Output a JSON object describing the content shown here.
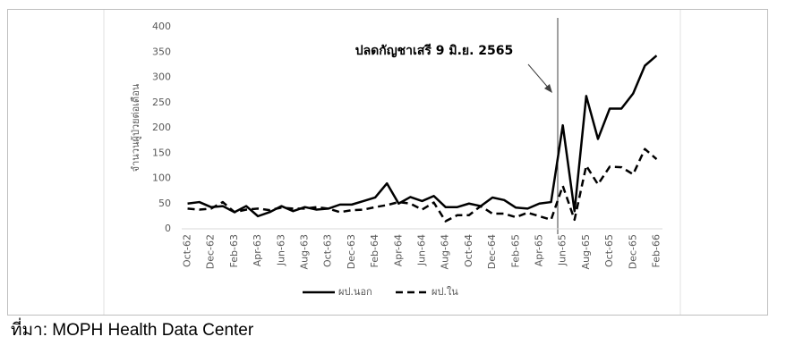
{
  "chart_data": {
    "type": "line",
    "annotation": "ปลดกัญชาเสรี 9 มิ.ย. 2565",
    "y_label": "จำนวนผู้ป่วยต่อเดือน",
    "source": "ที่มา: MOPH Health Data Center",
    "categories": [
      "Oct-62",
      null,
      "Dec-62",
      null,
      "Feb-63",
      null,
      "Apr-63",
      null,
      "Jun-63",
      null,
      "Aug-63",
      null,
      "Oct-63",
      null,
      "Dec-63",
      null,
      "Feb-64",
      null,
      "Apr-64",
      null,
      "Jun-64",
      null,
      "Aug-64",
      null,
      "Oct-64",
      null,
      "Dec-64",
      null,
      "Feb-65",
      null,
      "Apr-65",
      null,
      "Jun-65",
      null,
      "Aug-65",
      null,
      "Oct-65",
      null,
      "Dec-65",
      null,
      "Feb-66"
    ],
    "series": [
      {
        "name": "ผป.นอก",
        "color": "#000000",
        "dash": false,
        "values": [
          50,
          53,
          43,
          45,
          33,
          45,
          25,
          33,
          45,
          35,
          43,
          38,
          40,
          48,
          48,
          55,
          62,
          90,
          50,
          63,
          55,
          65,
          43,
          43,
          50,
          45,
          62,
          57,
          42,
          40,
          50,
          53,
          205,
          35,
          263,
          178,
          238,
          238,
          268,
          323,
          343
        ]
      },
      {
        "name": "ผป.ใน",
        "color": "#000000",
        "dash": true,
        "values": [
          40,
          38,
          40,
          53,
          33,
          38,
          40,
          37,
          42,
          40,
          40,
          43,
          40,
          33,
          37,
          38,
          43,
          47,
          53,
          50,
          38,
          52,
          15,
          27,
          27,
          45,
          30,
          30,
          23,
          32,
          25,
          18,
          85,
          18,
          125,
          88,
          123,
          122,
          108,
          158,
          138
        ]
      }
    ],
    "ylim": [
      0,
      400
    ],
    "yticks": [
      0,
      50,
      100,
      150,
      200,
      250,
      300,
      350,
      400
    ],
    "grid": false,
    "legend": "bottom"
  }
}
